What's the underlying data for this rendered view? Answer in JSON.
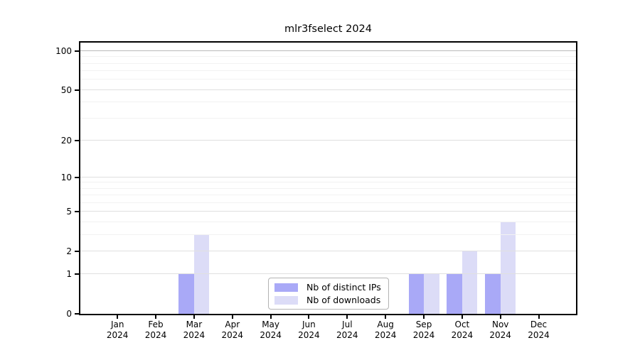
{
  "title": "mlr3fselect 2024",
  "legend": {
    "items": [
      {
        "label": "Nb of distinct IPs",
        "color": "#a9a9f7"
      },
      {
        "label": "Nb of downloads",
        "color": "#dcdcf7"
      }
    ]
  },
  "axes": {
    "y_tick_labels": [
      "0",
      "1",
      "2",
      "5",
      "10",
      "20",
      "50",
      "100"
    ],
    "x_year": "2024"
  },
  "chart_data": {
    "type": "bar",
    "title": "mlr3fselect 2024",
    "categories": [
      "Jan 2024",
      "Feb 2024",
      "Mar 2024",
      "Apr 2024",
      "May 2024",
      "Jun 2024",
      "Jul 2024",
      "Aug 2024",
      "Sep 2024",
      "Oct 2024",
      "Nov 2024",
      "Dec 2024"
    ],
    "series": [
      {
        "name": "Nb of distinct IPs",
        "color": "#a9a9f7",
        "values": [
          0,
          0,
          1,
          0,
          0,
          0,
          0,
          0,
          1,
          1,
          1,
          0
        ]
      },
      {
        "name": "Nb of downloads",
        "color": "#dcdcf7",
        "values": [
          0,
          0,
          3,
          0,
          0,
          0,
          0,
          0,
          1,
          2,
          4,
          0
        ]
      }
    ],
    "yscale": "log(1+x)",
    "ylim": [
      0,
      105
    ],
    "y_ticks_major": [
      0,
      1,
      2,
      5,
      10,
      20,
      50,
      100
    ],
    "y_ticks_minor": [
      3,
      4,
      6,
      7,
      8,
      9,
      30,
      40,
      60,
      70,
      80,
      90
    ],
    "grid": true,
    "grid_above_bars": true,
    "legend_position": "lower-center-inside",
    "xlabel": "",
    "ylabel": ""
  },
  "colors": {
    "bar_ips": "#a9a9f7",
    "bar_downloads": "#dcdcf7",
    "grid_major": "#e0e0e0",
    "grid_minor": "#f2f2f2",
    "grid_top": "#b9b9b9",
    "axis": "#000000",
    "legend_border": "#b3b3b3",
    "background": "#ffffff"
  }
}
